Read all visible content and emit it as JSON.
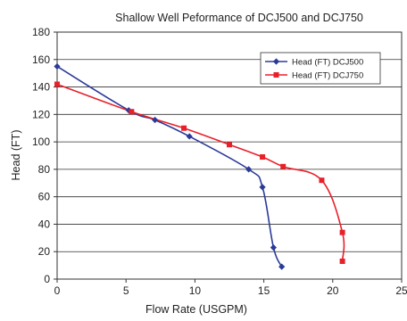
{
  "chart_data": {
    "type": "line",
    "title": "Shallow Well Peformance of DCJ500 and DCJ750",
    "xlabel": "Flow Rate (USGPM)",
    "ylabel": "Head (FT)",
    "xlim": [
      0,
      25
    ],
    "ylim": [
      0,
      180
    ],
    "xticks": [
      0,
      5,
      10,
      15,
      20,
      25
    ],
    "yticks": [
      0,
      20,
      40,
      60,
      80,
      100,
      120,
      140,
      160,
      180
    ],
    "grid": "horizontal",
    "legend_position": "top-right",
    "series": [
      {
        "name": "Head (FT) DCJ500",
        "color": "#2b3a97",
        "marker": "diamond",
        "x": [
          0,
          5.2,
          7.1,
          9.6,
          13.9,
          14.9,
          15.7,
          16.3
        ],
        "y": [
          155,
          123,
          116,
          104,
          80,
          67,
          23,
          9
        ]
      },
      {
        "name": "Head (FT) DCJ750",
        "color": "#e8202a",
        "marker": "square",
        "x": [
          0,
          5.4,
          9.2,
          12.5,
          14.9,
          16.4,
          19.2,
          20.7,
          20.7
        ],
        "y": [
          142,
          122,
          110,
          98,
          89,
          82,
          72,
          34,
          13
        ]
      }
    ]
  }
}
